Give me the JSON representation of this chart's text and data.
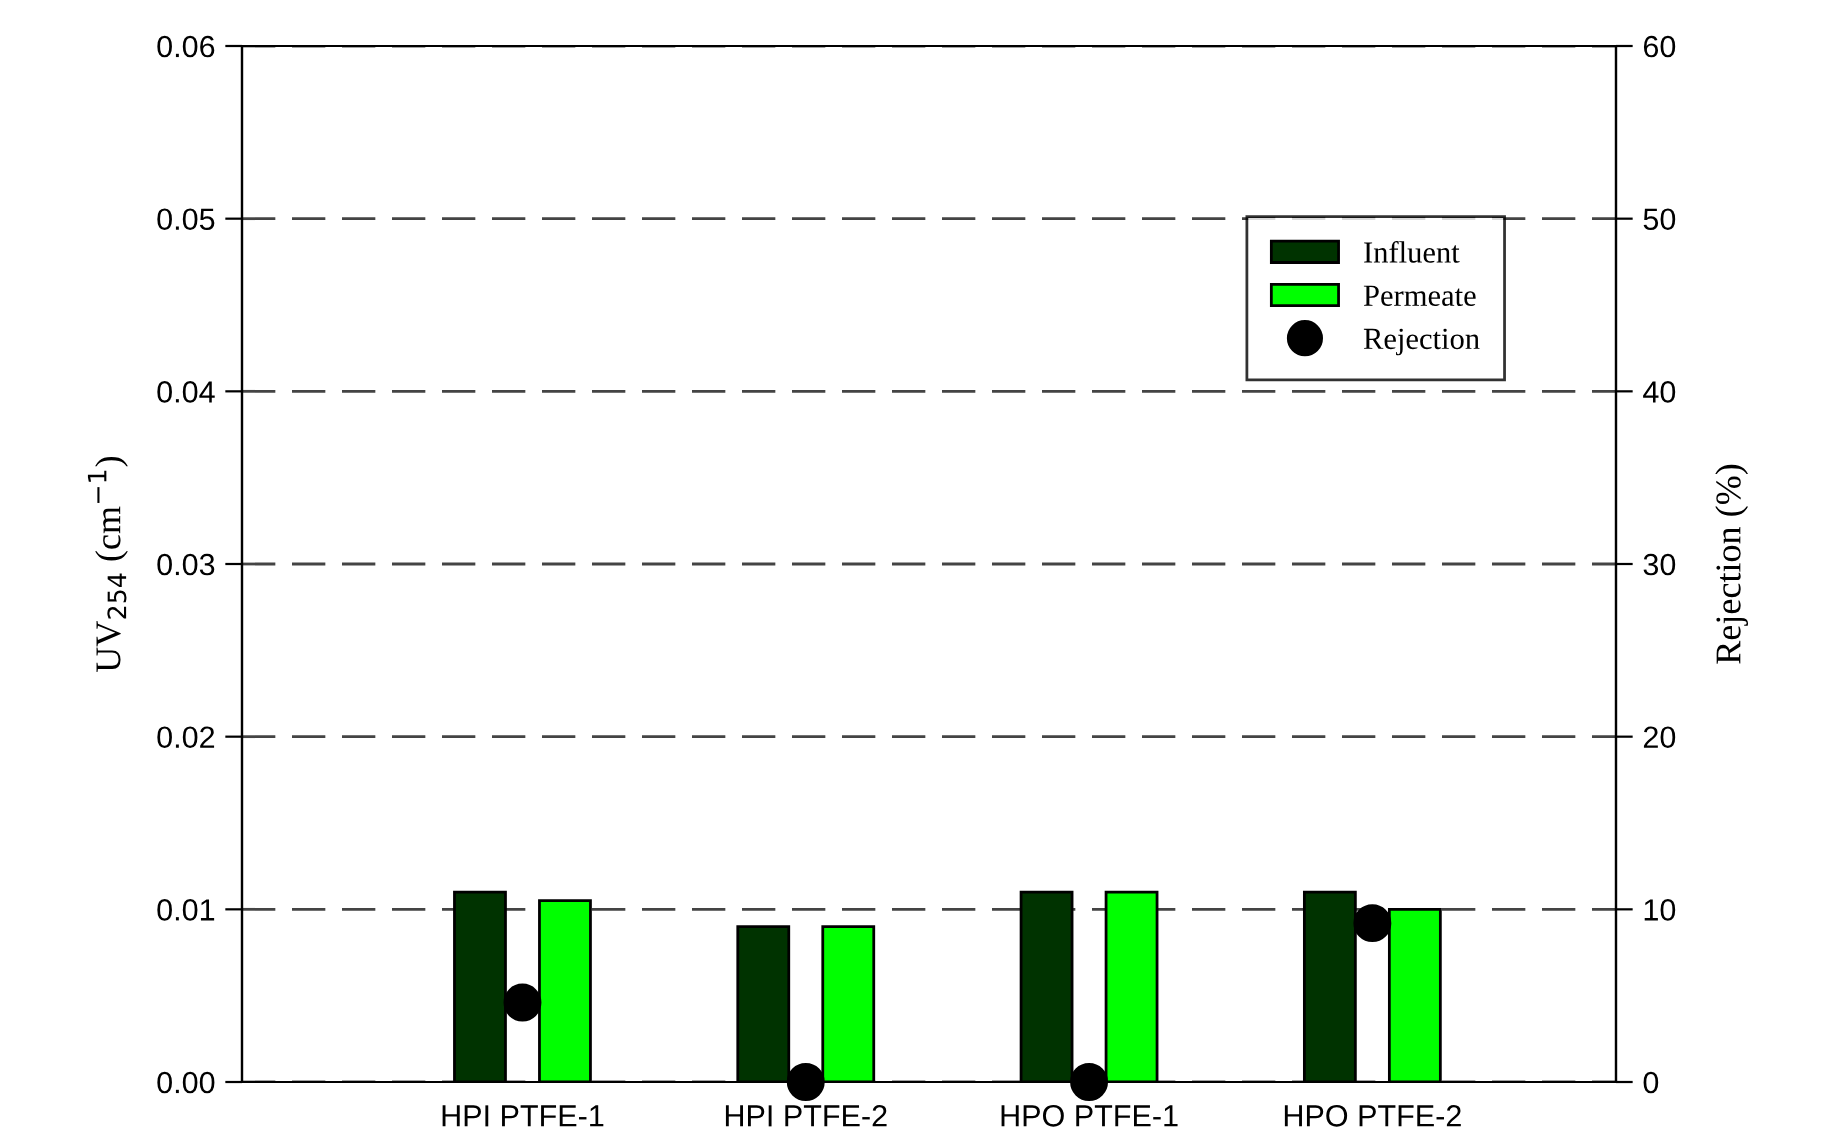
{
  "chart_data": {
    "type": "bar",
    "categories": [
      "HPI PTFE-1",
      "HPI PTFE-2",
      "HPO PTFE-1",
      "HPO PTFE-2"
    ],
    "series": [
      {
        "name": "Influent",
        "color": "#003300",
        "values": [
          0.011,
          0.009,
          0.011,
          0.011
        ]
      },
      {
        "name": "Permeate",
        "color": "#00ff00",
        "values": [
          0.0105,
          0.009,
          0.011,
          0.01
        ]
      },
      {
        "name": "Rejection",
        "color": "#000000",
        "type": "scatter",
        "axis": "y2",
        "marker": "circle",
        "values": [
          4.6,
          0,
          0,
          9.2
        ]
      }
    ],
    "ylabel": "UV$_{254}$ (cm$^{−1}$)",
    "y2label": "Rejection (%)",
    "ylim": [
      0,
      0.06
    ],
    "yticks": [
      {
        "value": 0,
        "label": "0.00"
      },
      {
        "value": 0.01,
        "label": "0.01"
      },
      {
        "value": 0.02,
        "label": "0.02"
      },
      {
        "value": 0.03,
        "label": "0.03"
      },
      {
        "value": 0.04,
        "label": "0.04"
      },
      {
        "value": 0.05,
        "label": "0.05"
      },
      {
        "value": 0.06,
        "label": "0.06"
      }
    ],
    "y2lim": [
      0,
      60
    ],
    "y2ticks": [
      0,
      10,
      20,
      30,
      40,
      50,
      60
    ],
    "grid": "y",
    "legend": "top right"
  }
}
